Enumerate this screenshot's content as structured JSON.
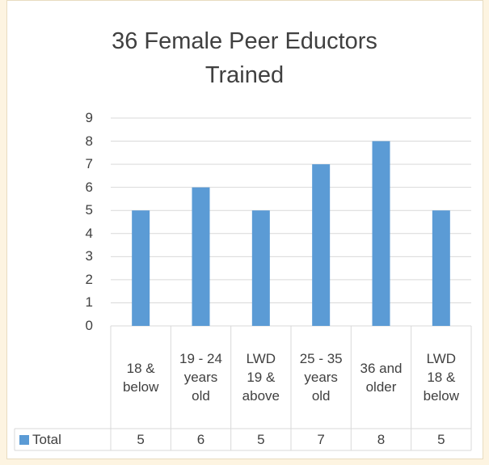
{
  "chart_data": {
    "type": "bar",
    "title": "36 Female Peer Eductors Trained",
    "categories": [
      "18 & below",
      "19 - 24 years old",
      "LWD 19 & above",
      "25 - 35 years old",
      "36 and older",
      "LWD 18 & below"
    ],
    "series": [
      {
        "name": "Total",
        "color": "#5b9bd5",
        "values": [
          5,
          6,
          5,
          7,
          8,
          5
        ]
      }
    ],
    "ylim": [
      0,
      9
    ],
    "yticks": [
      0,
      1,
      2,
      3,
      4,
      5,
      6,
      7,
      8,
      9
    ],
    "grid": true,
    "data_table": true
  }
}
